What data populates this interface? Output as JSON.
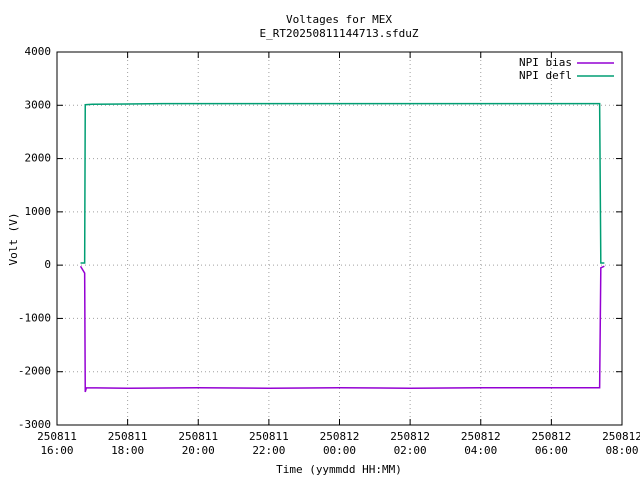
{
  "chart_data": {
    "type": "line",
    "title": "Voltages for MEX",
    "subtitle": "E_RT20250811144713.sfduZ",
    "xlabel": "Time (yymmdd HH:MM)",
    "ylabel": "Volt (V)",
    "xlim": [
      "2025-08-11T16:00",
      "2025-08-12T08:00"
    ],
    "xticks": [
      {
        "value": "2025-08-11T16:00",
        "label": "250811\n16:00"
      },
      {
        "value": "2025-08-11T18:00",
        "label": "250811\n18:00"
      },
      {
        "value": "2025-08-11T20:00",
        "label": "250811\n20:00"
      },
      {
        "value": "2025-08-11T22:00",
        "label": "250811\n22:00"
      },
      {
        "value": "2025-08-12T00:00",
        "label": "250812\n00:00"
      },
      {
        "value": "2025-08-12T02:00",
        "label": "250812\n02:00"
      },
      {
        "value": "2025-08-12T04:00",
        "label": "250812\n04:00"
      },
      {
        "value": "2025-08-12T06:00",
        "label": "250812\n06:00"
      },
      {
        "value": "2025-08-12T08:00",
        "label": "250812\n08:00"
      }
    ],
    "ylim": [
      -3000,
      4000
    ],
    "yticks": [
      -3000,
      -2000,
      -1000,
      0,
      1000,
      2000,
      3000,
      4000
    ],
    "grid": true,
    "legend": "top-right",
    "series": [
      {
        "name": "NPI bias",
        "color": "#9400d3",
        "x": [
          "2025-08-11T16:40",
          "2025-08-11T16:47",
          "2025-08-11T16:48",
          "2025-08-11T16:50",
          "2025-08-11T18:00",
          "2025-08-11T20:00",
          "2025-08-11T22:00",
          "2025-08-12T00:00",
          "2025-08-12T02:00",
          "2025-08-12T04:00",
          "2025-08-12T06:00",
          "2025-08-12T07:22",
          "2025-08-12T07:24",
          "2025-08-12T07:30"
        ],
        "values": [
          -20,
          -150,
          -2380,
          -2300,
          -2310,
          -2300,
          -2310,
          -2300,
          -2310,
          -2300,
          -2300,
          -2300,
          -50,
          -20
        ]
      },
      {
        "name": "NPI defl",
        "color": "#009e73",
        "x": [
          "2025-08-11T16:40",
          "2025-08-11T16:47",
          "2025-08-11T16:48",
          "2025-08-11T17:00",
          "2025-08-11T19:00",
          "2025-08-11T22:00",
          "2025-08-12T00:00",
          "2025-08-12T03:00",
          "2025-08-12T06:00",
          "2025-08-12T07:22",
          "2025-08-12T07:24",
          "2025-08-12T07:30"
        ],
        "values": [
          40,
          40,
          3010,
          3020,
          3030,
          3030,
          3030,
          3030,
          3030,
          3030,
          40,
          40
        ]
      }
    ]
  }
}
